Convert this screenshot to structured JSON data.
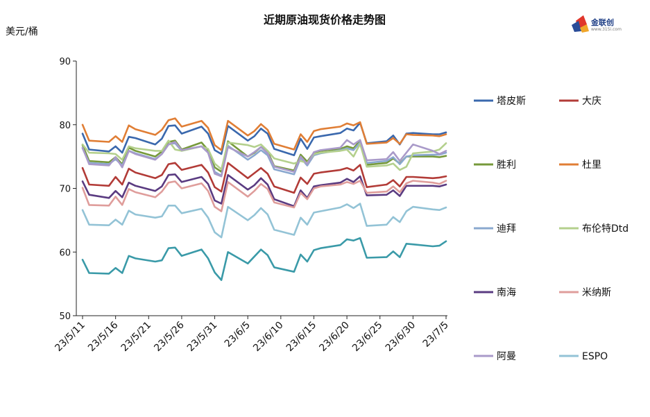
{
  "chart_data": {
    "type": "line",
    "title": "近期原油现货价格走势图",
    "ylabel": "美元/桶",
    "ylim": [
      50,
      90
    ],
    "yticks": [
      50,
      60,
      70,
      80,
      90
    ],
    "grid": false,
    "legend_position": "right",
    "x_tick_labels": [
      "23/5/11",
      "23/5/16",
      "23/5/21",
      "23/5/26",
      "23/5/31",
      "23/6/5",
      "23/6/10",
      "23/6/15",
      "23/6/20",
      "23/6/25",
      "23/6/30",
      "23/7/5"
    ],
    "x": [
      "2023-05-11",
      "2023-05-12",
      "2023-05-15",
      "2023-05-16",
      "2023-05-17",
      "2023-05-18",
      "2023-05-19",
      "2023-05-22",
      "2023-05-23",
      "2023-05-24",
      "2023-05-25",
      "2023-05-26",
      "2023-05-29",
      "2023-05-30",
      "2023-05-31",
      "2023-06-01",
      "2023-06-02",
      "2023-06-05",
      "2023-06-06",
      "2023-06-07",
      "2023-06-08",
      "2023-06-09",
      "2023-06-12",
      "2023-06-13",
      "2023-06-14",
      "2023-06-15",
      "2023-06-16",
      "2023-06-19",
      "2023-06-20",
      "2023-06-21",
      "2023-06-22",
      "2023-06-23",
      "2023-06-26",
      "2023-06-27",
      "2023-06-28",
      "2023-06-29",
      "2023-06-30",
      "2023-07-03",
      "2023-07-04",
      "2023-07-05"
    ],
    "series": [
      {
        "name": "塔皮斯",
        "color": "#3a68ad",
        "values": [
          78.6,
          76.1,
          75.8,
          76.6,
          75.6,
          78.1,
          77.9,
          76.9,
          77.8,
          79.8,
          79.9,
          78.6,
          79.7,
          78.6,
          76.0,
          75.4,
          79.8,
          77.5,
          78.2,
          79.4,
          78.6,
          76.2,
          75.2,
          77.8,
          76.2,
          78.0,
          78.2,
          78.7,
          79.4,
          79.1,
          80.3,
          77.1,
          77.4,
          78.3,
          76.9,
          78.6,
          78.7,
          78.5,
          78.5,
          78.8
        ]
      },
      {
        "name": "大庆",
        "color": "#b23b37",
        "values": [
          73.2,
          70.6,
          70.4,
          71.8,
          70.6,
          73.1,
          72.5,
          71.6,
          72.1,
          73.8,
          74.0,
          72.9,
          73.7,
          72.5,
          70.2,
          69.5,
          74.0,
          71.6,
          72.4,
          73.2,
          72.3,
          70.3,
          69.3,
          71.7,
          70.7,
          72.3,
          72.5,
          72.9,
          73.2,
          72.8,
          73.7,
          70.2,
          70.6,
          71.3,
          70.3,
          71.8,
          71.8,
          71.6,
          71.7,
          71.9
        ]
      },
      {
        "name": "胜利",
        "color": "#76993a",
        "values": [
          76.8,
          74.3,
          74.1,
          74.9,
          73.8,
          76.4,
          75.9,
          75.0,
          75.8,
          77.3,
          77.5,
          76.1,
          77.2,
          76.0,
          73.3,
          72.6,
          77.4,
          75.0,
          75.6,
          76.5,
          75.8,
          73.5,
          72.8,
          75.3,
          74.2,
          75.6,
          75.9,
          76.2,
          76.6,
          76.3,
          77.5,
          73.7,
          74.0,
          74.7,
          73.9,
          75.0,
          75.0,
          75.0,
          74.9,
          75.1
        ]
      },
      {
        "name": "杜里",
        "color": "#e07e35",
        "values": [
          80.0,
          77.5,
          77.3,
          78.2,
          77.3,
          79.9,
          79.3,
          78.4,
          79.2,
          80.7,
          81.0,
          79.7,
          80.6,
          79.5,
          76.8,
          76.0,
          80.6,
          78.3,
          79.0,
          80.1,
          79.2,
          77.0,
          76.1,
          78.5,
          77.3,
          79.0,
          79.3,
          79.7,
          80.2,
          79.9,
          80.4,
          77.0,
          77.2,
          77.9,
          77.0,
          78.5,
          78.4,
          78.3,
          78.2,
          78.5
        ]
      },
      {
        "name": "迪拜",
        "color": "#8aa8cf",
        "values": [
          76.3,
          74.0,
          73.8,
          74.6,
          73.6,
          75.9,
          75.5,
          74.6,
          75.4,
          76.9,
          77.1,
          75.9,
          76.6,
          75.6,
          72.6,
          72.0,
          76.7,
          74.5,
          75.2,
          76.0,
          75.2,
          73.0,
          72.2,
          74.8,
          73.6,
          75.2,
          75.5,
          76.0,
          76.3,
          76.0,
          77.2,
          74.0,
          74.3,
          74.9,
          73.8,
          75.0,
          75.2,
          75.3,
          75.3,
          75.6
        ]
      },
      {
        "name": "布伦特Dtd",
        "color": "#b4d08d",
        "values": [
          76.9,
          75.6,
          75.5,
          75.4,
          74.5,
          76.6,
          76.3,
          75.9,
          75.9,
          77.5,
          76.1,
          75.9,
          76.6,
          76.2,
          73.9,
          73.0,
          77.2,
          76.8,
          76.5,
          76.9,
          75.9,
          74.7,
          73.9,
          74.3,
          74.0,
          75.4,
          75.6,
          75.9,
          76.1,
          75.0,
          77.0,
          73.4,
          73.6,
          73.9,
          72.9,
          73.4,
          75.5,
          75.8,
          76.1,
          77.1
        ]
      },
      {
        "name": "南海",
        "color": "#5a3b81",
        "values": [
          71.1,
          69.0,
          68.5,
          69.6,
          68.6,
          70.9,
          70.4,
          69.6,
          70.3,
          72.1,
          72.2,
          71.0,
          71.8,
          70.7,
          68.1,
          67.6,
          72.1,
          69.8,
          70.5,
          71.6,
          70.6,
          68.3,
          67.2,
          69.7,
          68.5,
          70.3,
          70.5,
          70.9,
          71.5,
          71.0,
          71.9,
          68.9,
          69.0,
          69.7,
          68.8,
          70.4,
          70.4,
          70.4,
          70.3,
          70.6
        ]
      },
      {
        "name": "米纳斯",
        "color": "#df9d9b",
        "values": [
          70.1,
          67.4,
          67.3,
          68.7,
          67.4,
          69.9,
          69.4,
          68.6,
          69.5,
          70.9,
          71.1,
          70.0,
          70.8,
          69.6,
          67.1,
          66.4,
          71.0,
          68.7,
          69.6,
          70.7,
          69.9,
          67.8,
          67.0,
          69.3,
          68.3,
          70.0,
          70.3,
          70.6,
          71.0,
          70.7,
          71.2,
          69.3,
          69.5,
          70.3,
          69.4,
          70.8,
          71.2,
          70.9,
          70.7,
          71.2
        ]
      },
      {
        "name": "阿曼",
        "color": "#a99ac9",
        "values": [
          76.4,
          73.8,
          73.6,
          74.9,
          73.3,
          75.9,
          75.4,
          74.5,
          75.4,
          76.9,
          77.3,
          76.0,
          76.6,
          75.6,
          72.3,
          71.9,
          76.5,
          75.0,
          75.7,
          76.5,
          75.5,
          73.4,
          72.6,
          75.0,
          73.8,
          75.7,
          76.0,
          76.4,
          77.6,
          76.9,
          77.6,
          74.4,
          74.6,
          75.7,
          74.3,
          75.6,
          76.9,
          75.9,
          75.4,
          75.9
        ]
      },
      {
        "name": "ESPO",
        "color": "#93c3d6",
        "values": [
          66.6,
          64.3,
          64.2,
          65.1,
          64.3,
          66.5,
          65.9,
          65.4,
          65.6,
          67.3,
          67.3,
          66.1,
          66.8,
          65.4,
          63.1,
          62.3,
          67.1,
          65.0,
          65.8,
          66.9,
          65.9,
          63.5,
          62.7,
          65.4,
          64.3,
          66.2,
          66.4,
          67.0,
          67.5,
          66.9,
          67.6,
          64.1,
          64.3,
          65.5,
          64.7,
          66.4,
          67.1,
          66.7,
          66.6,
          67.0
        ]
      },
      {
        "name": "",
        "color": "#3a9aa8",
        "values": [
          58.8,
          56.7,
          56.6,
          57.5,
          56.7,
          59.4,
          59.0,
          58.5,
          58.7,
          60.6,
          60.7,
          59.4,
          60.4,
          59.0,
          56.8,
          55.6,
          60.0,
          58.2,
          59.3,
          60.4,
          59.5,
          57.6,
          56.9,
          59.6,
          58.5,
          60.3,
          60.6,
          61.1,
          62.0,
          61.8,
          62.2,
          59.1,
          59.2,
          60.1,
          59.2,
          61.3,
          61.2,
          60.9,
          61.0,
          61.7
        ]
      }
    ]
  },
  "logo": {
    "text": "金联创",
    "sub": "www.315i.com"
  }
}
